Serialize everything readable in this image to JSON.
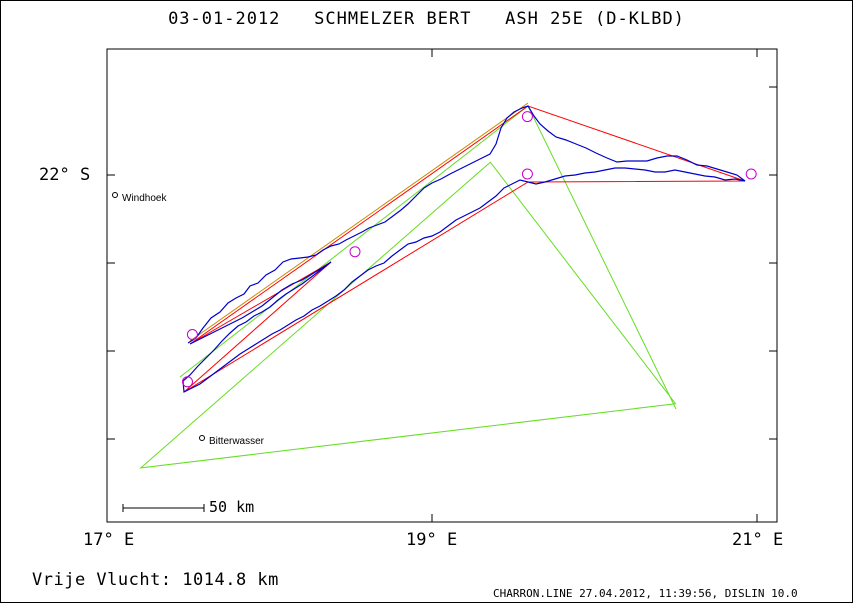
{
  "title": {
    "date": "03-01-2012",
    "pilot": "SCHMELZER BERT",
    "glider": "ASH 25E (D-KLBD)"
  },
  "axes": {
    "x_ticks": [
      "17° E",
      "19° E",
      "21° E"
    ],
    "y_ticks": [
      "22° S"
    ]
  },
  "places": [
    {
      "name": "Windhoek",
      "lon": 17.05,
      "lat": -22.12
    },
    {
      "name": "Bitterwasser",
      "lon": 17.57,
      "lat": -23.6
    }
  ],
  "scale_bar": {
    "label": "50 km"
  },
  "distance_text": "Vrije Vlucht: 1014.8 km",
  "footer_text": "CHARRON.LINE 27.04.2012, 11:39:56, DISLIN 10.0",
  "colors": {
    "track": "#0000cc",
    "task_line": "#ff0000",
    "triangle": "#66dd22",
    "turnpoint": "#cc00cc",
    "start_line": "#cc8800"
  },
  "chart_data": {
    "type": "map",
    "xlim": [
      16.97,
      21.13
    ],
    "ylim_lat": [
      -24.1,
      -21.3
    ],
    "turnpoints": [
      {
        "lon": 18.51,
        "lat": -22.5
      },
      {
        "lon": 19.58,
        "lat": -21.7
      },
      {
        "lon": 20.97,
        "lat": -22.04
      },
      {
        "lon": 19.58,
        "lat": -22.04
      },
      {
        "lon": 17.47,
        "lat": -23.27
      },
      {
        "lon": 17.5,
        "lat": -22.99
      }
    ],
    "triangle": [
      {
        "lon": 17.18,
        "lat": -23.78
      },
      {
        "lon": 19.35,
        "lat": -21.97
      },
      {
        "lon": 20.5,
        "lat": -23.4
      }
    ]
  }
}
